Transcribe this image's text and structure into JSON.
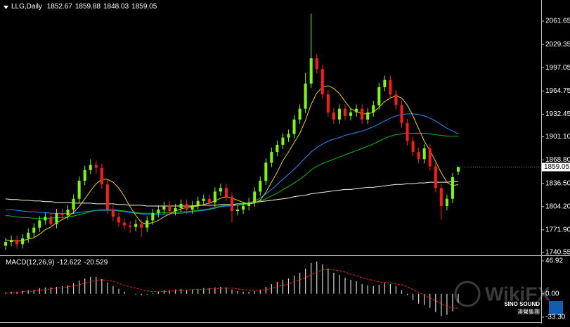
{
  "chart_data": [
    {
      "type": "candlestick",
      "title": "LLG,Daily",
      "open": [
        1750,
        1755,
        1758,
        1752,
        1760,
        1768,
        1775,
        1785,
        1790,
        1780,
        1795,
        1792,
        1800,
        1815,
        1840,
        1855,
        1862,
        1858,
        1835,
        1800,
        1790,
        1782,
        1778,
        1776,
        1780,
        1775,
        1785,
        1795,
        1800,
        1805,
        1798,
        1802,
        1808,
        1800,
        1806,
        1812,
        1815,
        1810,
        1825,
        1830,
        1818,
        1798,
        1800,
        1805,
        1810,
        1825,
        1840,
        1865,
        1880,
        1890,
        1900,
        1905,
        1925,
        1940,
        1975,
        2010,
        1995,
        1960,
        1935,
        1925,
        1940,
        1930,
        1935,
        1940,
        1925,
        1935,
        1945,
        1970,
        1980,
        1960,
        1945,
        1920,
        1895,
        1880,
        1870,
        1885,
        1860,
        1830,
        1805,
        1815,
        1852.67
      ],
      "high": [
        1761,
        1764,
        1764,
        1766,
        1774,
        1781,
        1791,
        1796,
        1796,
        1801,
        1801,
        1806,
        1821,
        1846,
        1861,
        1870,
        1868,
        1864,
        1841,
        1806,
        1796,
        1788,
        1784,
        1786,
        1786,
        1791,
        1801,
        1806,
        1811,
        1811,
        1808,
        1814,
        1814,
        1812,
        1818,
        1821,
        1821,
        1831,
        1836,
        1836,
        1824,
        1806,
        1811,
        1816,
        1831,
        1846,
        1871,
        1886,
        1896,
        1906,
        1911,
        1931,
        1946,
        1990,
        2072,
        2016,
        2001,
        1966,
        1941,
        1946,
        1946,
        1941,
        1946,
        1946,
        1941,
        1951,
        1976,
        1986,
        1986,
        1966,
        1951,
        1926,
        1901,
        1886,
        1891,
        1891,
        1866,
        1836,
        1821,
        1851,
        1859.88
      ],
      "low": [
        1744,
        1749,
        1746,
        1746,
        1754,
        1762,
        1769,
        1779,
        1774,
        1774,
        1786,
        1786,
        1794,
        1809,
        1834,
        1849,
        1850,
        1829,
        1794,
        1784,
        1776,
        1772,
        1768,
        1770,
        1762,
        1769,
        1779,
        1789,
        1794,
        1792,
        1792,
        1796,
        1794,
        1794,
        1800,
        1806,
        1804,
        1804,
        1819,
        1812,
        1782,
        1792,
        1794,
        1799,
        1804,
        1819,
        1834,
        1859,
        1874,
        1884,
        1894,
        1899,
        1919,
        1934,
        1969,
        1989,
        1954,
        1929,
        1919,
        1919,
        1924,
        1924,
        1929,
        1919,
        1919,
        1929,
        1939,
        1964,
        1954,
        1939,
        1914,
        1889,
        1874,
        1864,
        1864,
        1854,
        1824,
        1786,
        1799,
        1809,
        1848.03
      ],
      "close": [
        1755,
        1758,
        1752,
        1760,
        1768,
        1775,
        1785,
        1790,
        1780,
        1795,
        1792,
        1800,
        1815,
        1840,
        1855,
        1862,
        1858,
        1835,
        1800,
        1790,
        1782,
        1778,
        1776,
        1780,
        1775,
        1785,
        1795,
        1800,
        1805,
        1798,
        1802,
        1808,
        1800,
        1806,
        1812,
        1815,
        1810,
        1825,
        1830,
        1818,
        1798,
        1800,
        1805,
        1810,
        1825,
        1840,
        1865,
        1880,
        1890,
        1900,
        1905,
        1925,
        1940,
        1975,
        2010,
        1995,
        1960,
        1935,
        1925,
        1940,
        1930,
        1935,
        1940,
        1925,
        1935,
        1945,
        1970,
        1980,
        1960,
        1945,
        1920,
        1895,
        1880,
        1870,
        1885,
        1860,
        1830,
        1805,
        1815,
        1845,
        1859.05
      ],
      "up_color": "#7cfc00",
      "down_color": "#ff1a1a",
      "lines": [
        {
          "color": "#f5f5dc",
          "values": [
            1815,
            1814,
            1814,
            1813,
            1813,
            1812,
            1812,
            1811,
            1811,
            1810,
            1810,
            1810,
            1809,
            1809,
            1809,
            1809,
            1808,
            1808,
            1808,
            1808,
            1807,
            1807,
            1806,
            1806,
            1806,
            1805,
            1805,
            1805,
            1805,
            1805,
            1805,
            1805,
            1805,
            1805,
            1806,
            1806,
            1806,
            1806,
            1807,
            1807,
            1807,
            1808,
            1808,
            1809,
            1810,
            1811,
            1812,
            1813,
            1814,
            1815,
            1816,
            1818,
            1819,
            1820,
            1822,
            1823,
            1824,
            1825,
            1826,
            1827,
            1828,
            1828,
            1829,
            1830,
            1831,
            1831,
            1832,
            1833,
            1834,
            1835,
            1835,
            1836,
            1836,
            1837,
            1837,
            1838,
            1838,
            1838,
            1838,
            1839,
            1839
          ]
        },
        {
          "color": "#1e90ff",
          "values": [
            1800,
            1800,
            1799,
            1798,
            1797,
            1797,
            1796,
            1796,
            1795,
            1795,
            1795,
            1795,
            1795,
            1796,
            1797,
            1798,
            1799,
            1799,
            1799,
            1799,
            1798,
            1797,
            1796,
            1795,
            1794,
            1793,
            1793,
            1793,
            1794,
            1794,
            1795,
            1795,
            1796,
            1797,
            1798,
            1799,
            1800,
            1802,
            1804,
            1805,
            1805,
            1806,
            1807,
            1809,
            1812,
            1816,
            1822,
            1828,
            1835,
            1842,
            1849,
            1856,
            1864,
            1872,
            1880,
            1886,
            1891,
            1895,
            1898,
            1900,
            1903,
            1905,
            1907,
            1909,
            1912,
            1915,
            1919,
            1923,
            1927,
            1930,
            1932,
            1933,
            1933,
            1932,
            1930,
            1927,
            1923,
            1918,
            1913,
            1909,
            1905
          ]
        },
        {
          "color": "#00c000",
          "values": [
            1792,
            1791,
            1790,
            1789,
            1789,
            1788,
            1788,
            1788,
            1788,
            1789,
            1789,
            1790,
            1791,
            1793,
            1795,
            1797,
            1799,
            1800,
            1800,
            1800,
            1799,
            1798,
            1797,
            1796,
            1795,
            1795,
            1795,
            1795,
            1796,
            1796,
            1796,
            1797,
            1797,
            1798,
            1799,
            1800,
            1801,
            1803,
            1805,
            1806,
            1806,
            1806,
            1807,
            1808,
            1810,
            1812,
            1815,
            1819,
            1823,
            1828,
            1832,
            1837,
            1842,
            1848,
            1855,
            1860,
            1864,
            1867,
            1870,
            1873,
            1876,
            1879,
            1882,
            1885,
            1888,
            1891,
            1895,
            1899,
            1902,
            1904,
            1905,
            1906,
            1906,
            1906,
            1906,
            1905,
            1904,
            1903,
            1902,
            1902,
            1902
          ]
        },
        {
          "color": "#e6d200",
          "values": [
            1758,
            1757,
            1756,
            1757,
            1759,
            1761,
            1766,
            1772,
            1776,
            1782,
            1786,
            1790,
            1796,
            1804,
            1815,
            1826,
            1836,
            1842,
            1842,
            1838,
            1830,
            1818,
            1804,
            1792,
            1782,
            1780,
            1782,
            1785,
            1790,
            1794,
            1798,
            1801,
            1803,
            1804,
            1805,
            1807,
            1809,
            1812,
            1816,
            1818,
            1816,
            1813,
            1810,
            1808,
            1809,
            1813,
            1824,
            1838,
            1852,
            1868,
            1880,
            1893,
            1906,
            1924,
            1946,
            1962,
            1970,
            1972,
            1968,
            1961,
            1950,
            1940,
            1936,
            1933,
            1933,
            1935,
            1942,
            1950,
            1955,
            1958,
            1955,
            1945,
            1930,
            1912,
            1895,
            1882,
            1867,
            1851,
            1838,
            1833,
            1835
          ]
        }
      ],
      "ylim": [
        1737.6,
        2089.0
      ],
      "yticks": [
        2061.65,
        2029.35,
        1997.05,
        1964.75,
        1932.45,
        {
          "value": 1901.1,
          "label": "1901.10"
        },
        {
          "value": 1868.8,
          "label": "1868.80"
        },
        {
          "value": 1836.5,
          "label": "1836.50"
        },
        {
          "value": 1804.2,
          "label": "1804.20"
        },
        {
          "value": 1771.9,
          "label": "1771.90"
        },
        1740.55
      ]
    },
    {
      "type": "macd",
      "title": "MACD(12,26,9)",
      "values": [
        2,
        3,
        3,
        4,
        5,
        6,
        8,
        9,
        9,
        10,
        11,
        12,
        15,
        19,
        22,
        24,
        24,
        21,
        16,
        11,
        7,
        3,
        0,
        -1,
        -2,
        -1,
        1,
        3,
        5,
        5,
        6,
        7,
        6,
        6,
        7,
        8,
        8,
        9,
        10,
        9,
        6,
        4,
        3,
        3,
        4,
        6,
        10,
        14,
        17,
        20,
        22,
        26,
        30,
        36,
        44,
        46,
        42,
        36,
        30,
        27,
        23,
        20,
        18,
        14,
        12,
        11,
        13,
        15,
        14,
        11,
        5,
        -2,
        -9,
        -14,
        -16,
        -20,
        -26,
        -32,
        -30,
        -25,
        -12.622
      ],
      "signal": [
        1,
        2,
        2,
        3,
        3,
        4,
        5,
        6,
        7,
        8,
        9,
        10,
        11,
        13,
        15,
        17,
        19,
        20,
        19,
        18,
        15,
        12,
        10,
        8,
        6,
        4,
        3,
        3,
        3,
        4,
        4,
        5,
        5,
        6,
        6,
        6,
        7,
        7,
        8,
        8,
        8,
        7,
        6,
        5,
        5,
        5,
        6,
        8,
        10,
        12,
        14,
        17,
        20,
        23,
        27,
        31,
        34,
        35,
        34,
        33,
        31,
        28,
        26,
        23,
        21,
        19,
        17,
        16,
        15,
        14,
        13,
        10,
        6,
        2,
        -2,
        -6,
        -10,
        -14,
        -18,
        -20,
        -20.529
      ],
      "color": "#d8d8d8",
      "signal_color": "#ff2020",
      "ylim": [
        -40.3,
        52.9
      ],
      "yticks": [
        46.92,
        {
          "value": 0,
          "label": "0.00"
        },
        {
          "value": -33.3,
          "label": "-33.30"
        }
      ]
    }
  ],
  "watermark": {
    "text": "WikiFX",
    "logo": "SINO SOUND",
    "logo_sub": "澳聲集團"
  }
}
